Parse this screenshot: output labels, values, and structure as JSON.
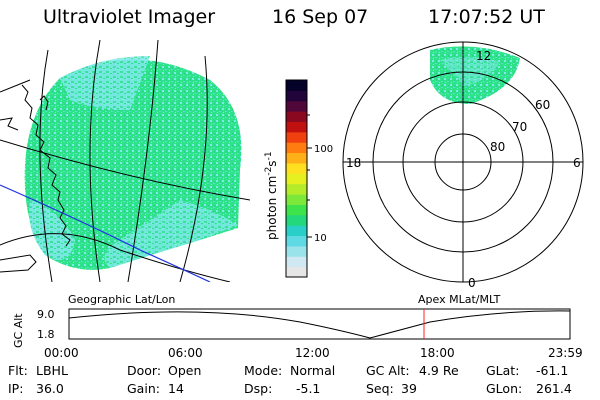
{
  "header": {
    "title": "Ultraviolet Imager",
    "date": "16 Sep 07",
    "time": "17:07:52 UT"
  },
  "colors": {
    "aurora_green": "#2ee28a",
    "aurora_cyan": "#7fe9ea",
    "marker_red": "#ff2020",
    "equator_blue": "#2030e0"
  },
  "colorbar": {
    "label": "photon cm",
    "exp1": "-2",
    "mid": "s",
    "exp2": "-1",
    "tick_100": "100",
    "tick_10": "10",
    "colors": [
      "#e6e6e6",
      "#cfe8f2",
      "#9be3ea",
      "#5fd9e3",
      "#2ad0c8",
      "#22d87a",
      "#3ee24a",
      "#7ee83a",
      "#b4ec2a",
      "#e6f020",
      "#ffe020",
      "#ffb018",
      "#ff7c10",
      "#f04010",
      "#c01010",
      "#8a0820",
      "#50083a",
      "#20043a",
      "#05022a"
    ]
  },
  "polar": {
    "lbl_12": "12",
    "lbl_18": "18",
    "lbl_6": "6",
    "lbl_0": "0",
    "lbl_60": "60",
    "lbl_70": "70",
    "lbl_80": "80"
  },
  "labels": {
    "geographic": "Geographic Lat/Lon",
    "apex": "Apex MLat/MLT"
  },
  "altplot": {
    "ylabel": "GC Alt",
    "y_top": "9.0",
    "y_bottom": "1.8",
    "x_ticks": [
      "00:00",
      "06:00",
      "12:00",
      "18:00",
      "23:59"
    ]
  },
  "info": {
    "flt_label": "Flt:",
    "flt_value": "LBHL",
    "ip_label": "IP:",
    "ip_value": "36.0",
    "door_label": "Door:",
    "door_value": "Open",
    "gain_label": "Gain:",
    "gain_value": "14",
    "mode_label": "Mode:",
    "mode_value": "Normal",
    "dsp_label": "Dsp:",
    "dsp_value": "-5.1",
    "gcalt_label": "GC Alt:",
    "gcalt_value": "4.9 Re",
    "seq_label": "Seq:",
    "seq_value": "39",
    "glat_label": "GLat:",
    "glat_value": "-61.1",
    "glon_label": "GLon:",
    "glon_value": "261.4"
  }
}
